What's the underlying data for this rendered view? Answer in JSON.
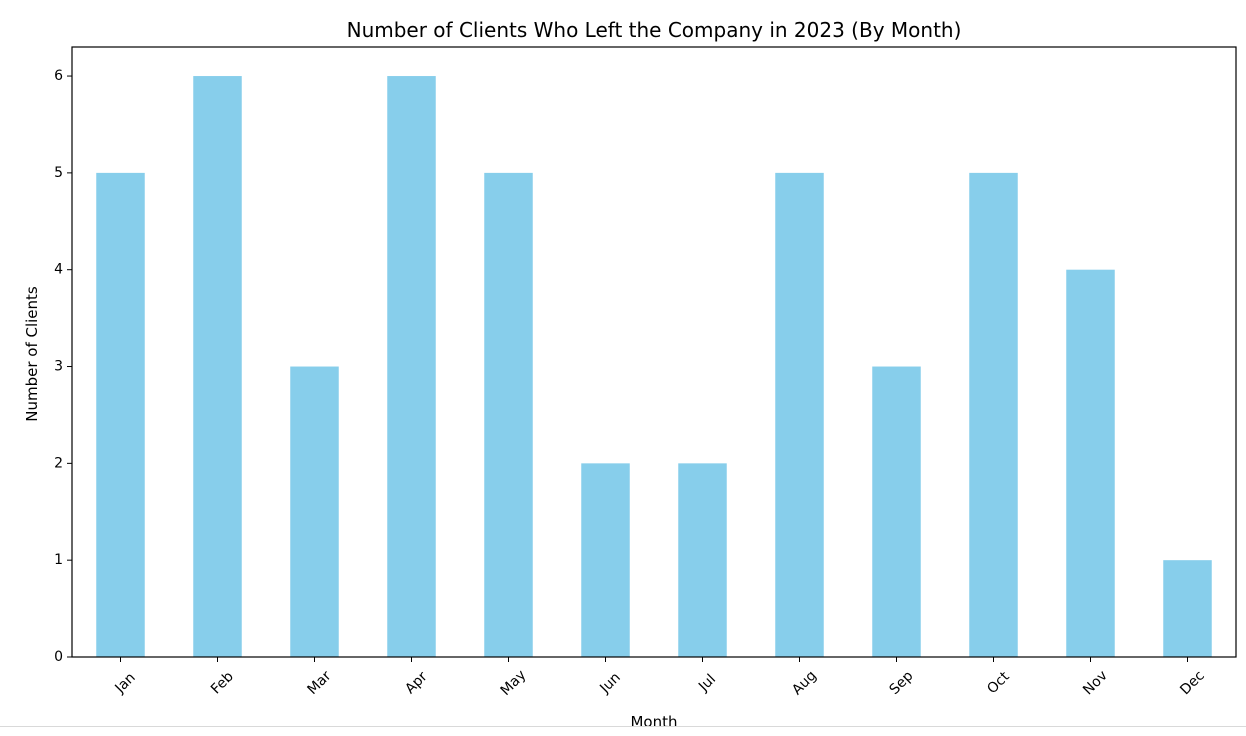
{
  "chart_data": {
    "type": "bar",
    "title": "Number of Clients Who Left the Company in 2023 (By Month)",
    "xlabel": "Month",
    "ylabel": "Number of Clients",
    "categories": [
      "Jan",
      "Feb",
      "Mar",
      "Apr",
      "May",
      "Jun",
      "Jul",
      "Aug",
      "Sep",
      "Oct",
      "Nov",
      "Dec"
    ],
    "values": [
      5,
      6,
      3,
      6,
      5,
      2,
      2,
      5,
      3,
      5,
      4,
      1
    ],
    "ylim": [
      0,
      6.3
    ],
    "yticks": [
      0,
      1,
      2,
      3,
      4,
      5,
      6
    ],
    "grid": false,
    "bar_color": "#87ceeb",
    "axis_color": "#000000",
    "x_tick_rotation": "45 degrees"
  }
}
